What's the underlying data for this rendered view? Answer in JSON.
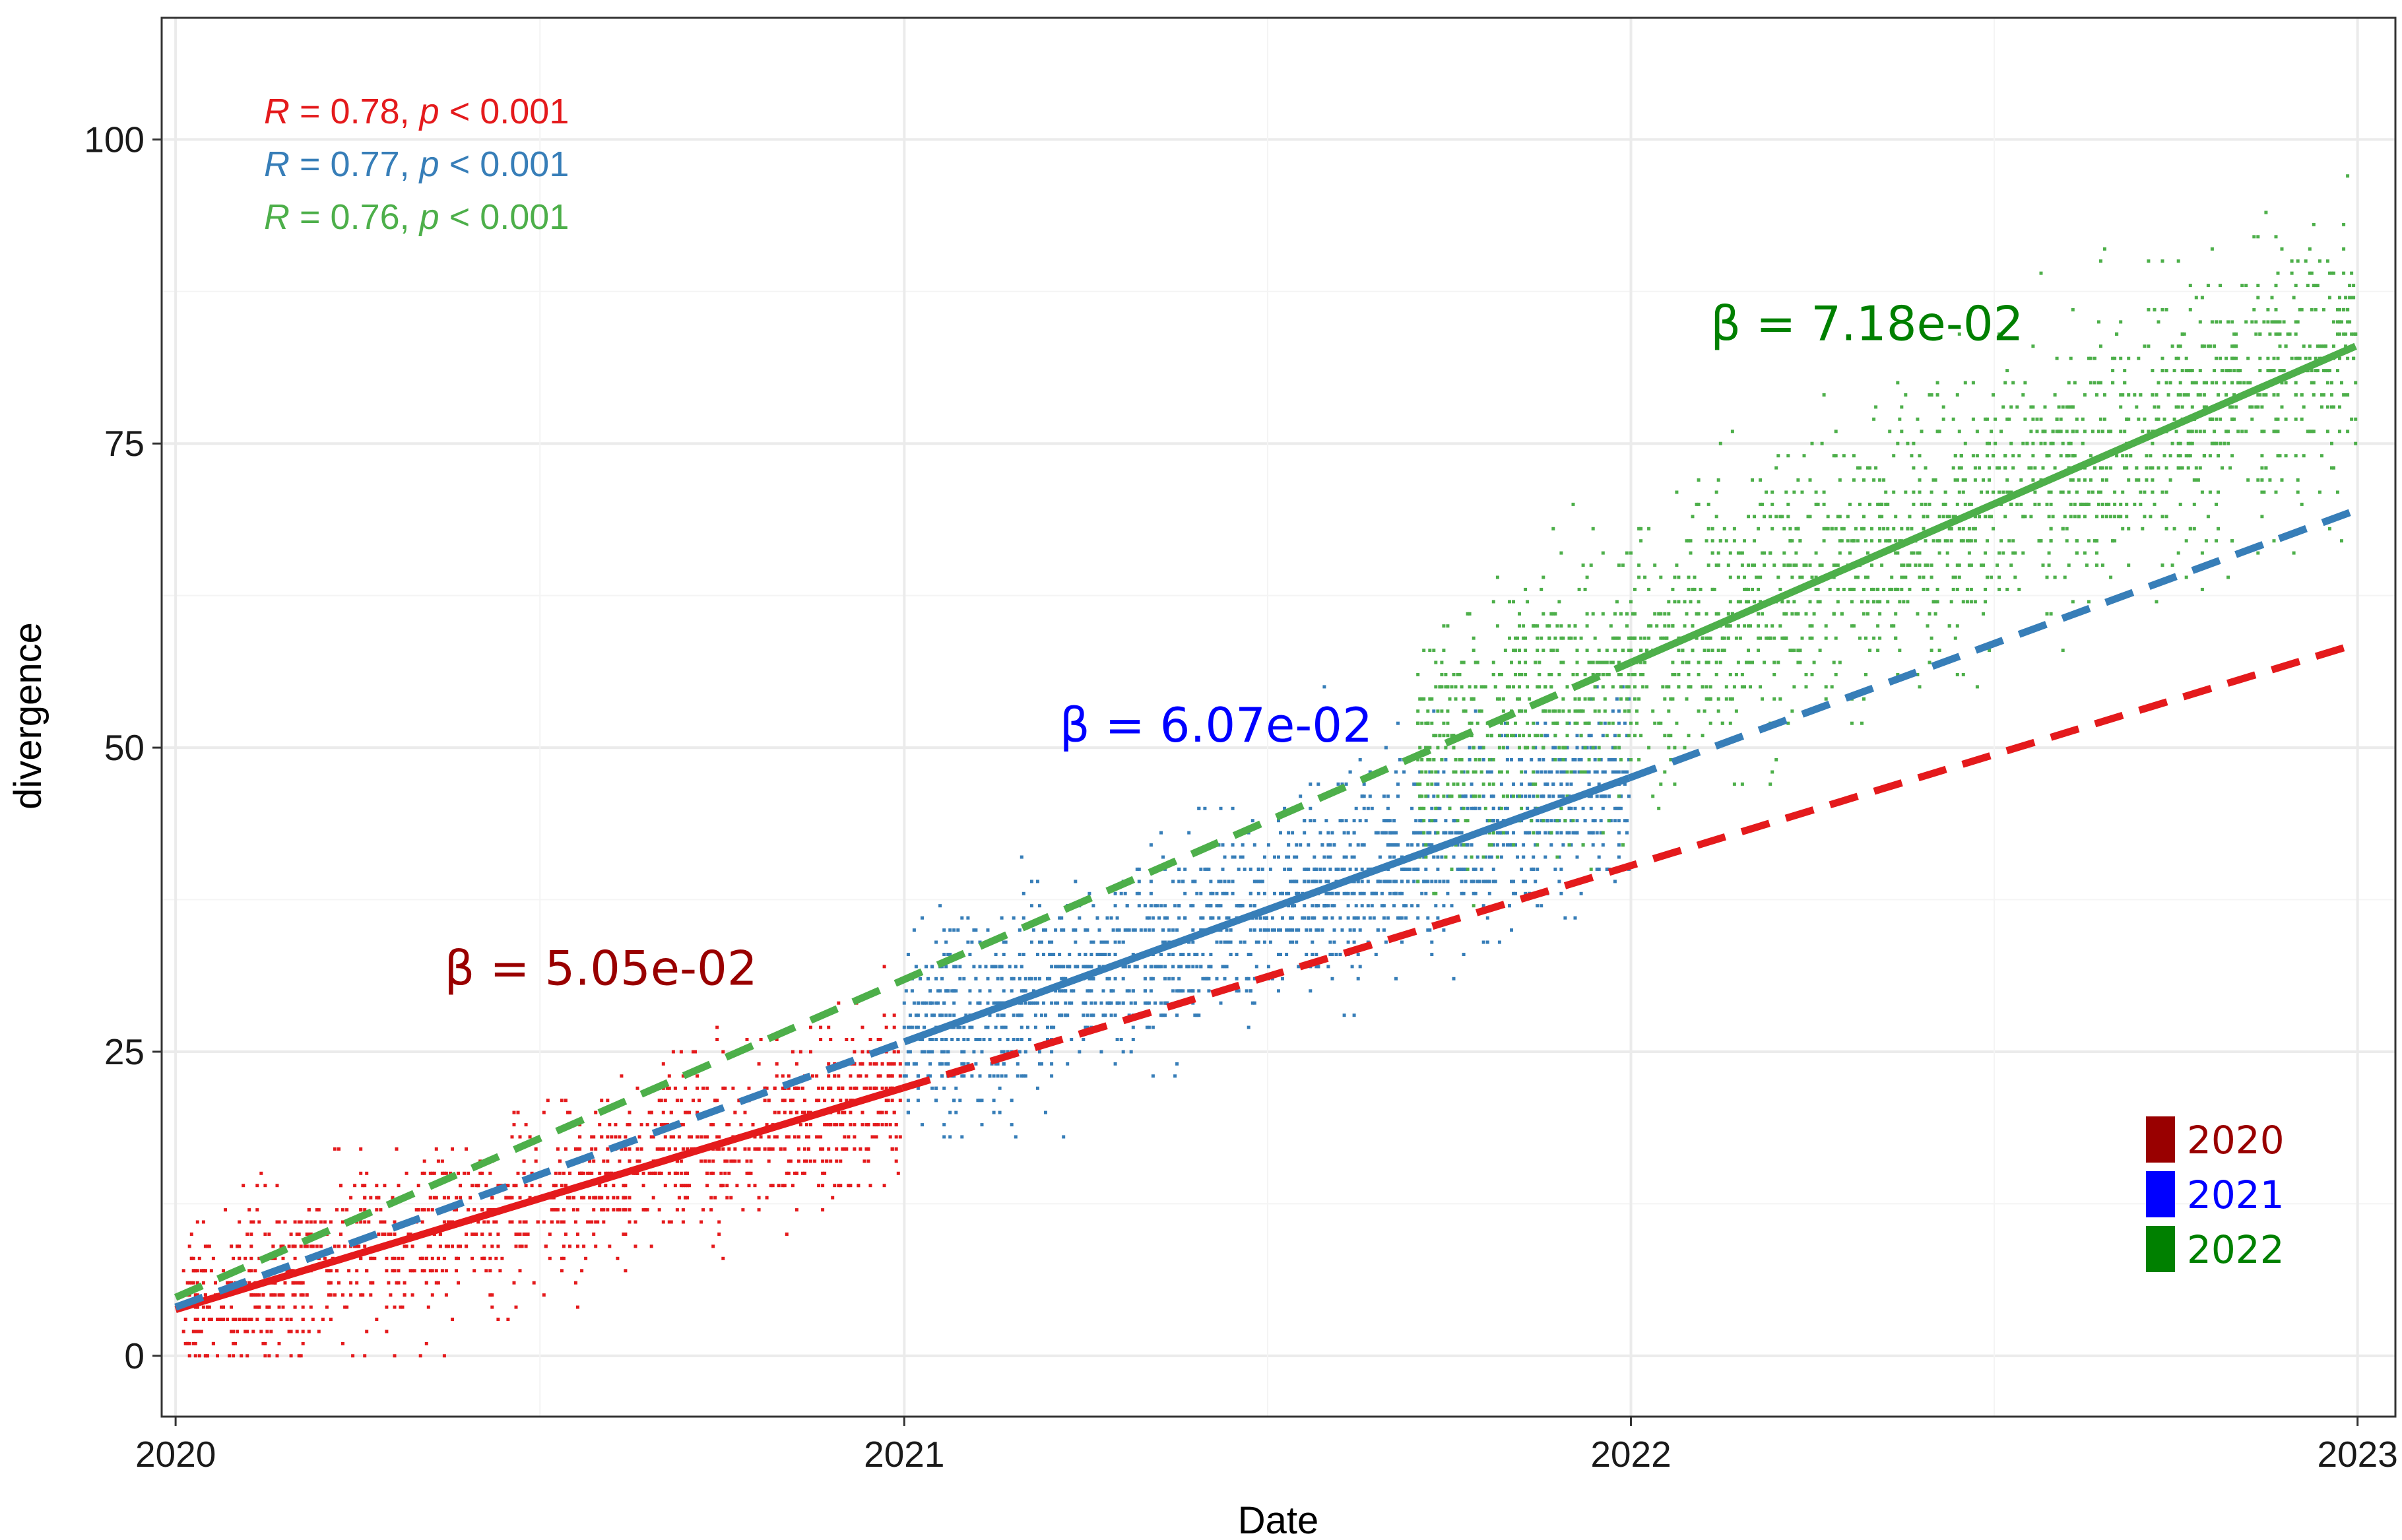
{
  "chart_data": {
    "type": "scatter",
    "title": "",
    "xlabel": "Date",
    "ylabel": "divergence",
    "x_axis_type": "date",
    "xlim": [
      "2019-12-25",
      "2023-01-20"
    ],
    "ylim": [
      -5,
      110
    ],
    "x_ticks": [
      "2020",
      "2021",
      "2022",
      "2023"
    ],
    "y_ticks": [
      0,
      25,
      50,
      75,
      100
    ],
    "grid": true,
    "legend_position": "bottom-right",
    "legend": [
      {
        "label": "2020",
        "color": "#990000"
      },
      {
        "label": "2021",
        "color": "#0000ff"
      },
      {
        "label": "2022",
        "color": "#008000"
      }
    ],
    "series": [
      {
        "name": "2020",
        "color": "#e41a1c",
        "x_range": [
          "2020-01-05",
          "2020-12-31"
        ],
        "y_noise_sd": 3.5,
        "point_count": 1400,
        "fit_line": {
          "start": [
            "2020-01-01",
            3.8
          ],
          "end": [
            "2020-12-31",
            22
          ],
          "solid_until": "2020-12-31",
          "dashed_until": "2022-12-31",
          "dashed_end_y": 58.5
        }
      },
      {
        "name": "2021",
        "color": "#377eb8",
        "x_range": [
          "2021-01-01",
          "2021-12-31"
        ],
        "y_noise_sd": 4,
        "point_count": 1800,
        "fit_line": {
          "start": [
            "2020-01-01",
            4
          ],
          "end": [
            "2021-12-31",
            47.5
          ],
          "solid_from": "2021-01-01",
          "solid_until": "2021-12-31",
          "dashed_until": "2022-12-31",
          "dashed_end_y": 69.5
        }
      },
      {
        "name": "2022",
        "color": "#4daf4a",
        "x_range": [
          "2021-09-15",
          "2022-12-31"
        ],
        "y_noise_sd": 5.5,
        "point_count": 2200,
        "fit_line": {
          "start": [
            "2020-01-01",
            4.8
          ],
          "end": [
            "2022-12-31",
            83
          ],
          "solid_from": "2022-01-01",
          "solid_until": "2022-12-31"
        }
      }
    ],
    "annotations": {
      "stats": [
        {
          "prefix": "R",
          "text": " = 0.78, ",
          "p": "p",
          "suffix": " < 0.001",
          "color": "#e41a1c"
        },
        {
          "prefix": "R",
          "text": " = 0.77, ",
          "p": "p",
          "suffix": " < 0.001",
          "color": "#377eb8"
        },
        {
          "prefix": "R",
          "text": " = 0.76, ",
          "p": "p",
          "suffix": " < 0.001",
          "color": "#4daf4a"
        }
      ],
      "betas": [
        {
          "text": "β = 5.05e-02",
          "color": "#990000",
          "x": "2020-05-15",
          "y": 30.5
        },
        {
          "text": "β = 6.07e-02",
          "color": "#0000ff",
          "x": "2021-03-20",
          "y": 50.5
        },
        {
          "text": "β = 7.18e-02",
          "color": "#008000",
          "x": "2022-02-10",
          "y": 83.5
        }
      ]
    }
  }
}
